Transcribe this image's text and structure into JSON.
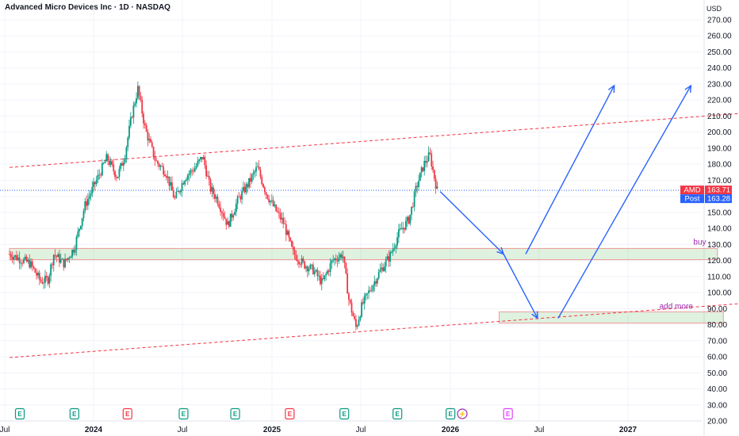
{
  "header": {
    "title": "Advanced Micro Devices Inc · 1D · NASDAQ",
    "currency": "USD"
  },
  "chart_data": {
    "type": "candlestick",
    "symbol": "AMD",
    "ylim": [
      20,
      270
    ],
    "y_ticks": [
      20,
      30,
      40,
      50,
      60,
      70,
      80,
      90,
      100,
      110,
      120,
      130,
      140,
      150,
      160,
      170,
      180,
      190,
      200,
      210,
      220,
      230,
      240,
      250,
      260,
      270
    ],
    "x_ticks": [
      "Jul",
      "2024",
      "Jul",
      "2025",
      "Jul",
      "2026",
      "Jul",
      "2027"
    ],
    "price_tags": [
      {
        "label": "AMD",
        "value": 163.71,
        "color": "#f23645"
      },
      {
        "label": "Post",
        "value": 163.28,
        "color": "#2962ff"
      }
    ],
    "last_price": 163.71,
    "price_path": [
      [
        0,
        124
      ],
      [
        0.35,
        121
      ],
      [
        0.7,
        118
      ],
      [
        1.05,
        107
      ],
      [
        1.3,
        108
      ],
      [
        1.5,
        124
      ],
      [
        1.85,
        118
      ],
      [
        2.2,
        128
      ],
      [
        2.55,
        154
      ],
      [
        2.9,
        168
      ],
      [
        3.3,
        184
      ],
      [
        3.65,
        172
      ],
      [
        3.9,
        185
      ],
      [
        4.15,
        211
      ],
      [
        4.35,
        227
      ],
      [
        4.6,
        202
      ],
      [
        4.95,
        182
      ],
      [
        5.3,
        175
      ],
      [
        5.6,
        158
      ],
      [
        5.95,
        172
      ],
      [
        6.3,
        178
      ],
      [
        6.55,
        185
      ],
      [
        6.8,
        165
      ],
      [
        7.05,
        158
      ],
      [
        7.4,
        142
      ],
      [
        7.75,
        158
      ],
      [
        8.1,
        168
      ],
      [
        8.4,
        178
      ],
      [
        8.7,
        162
      ],
      [
        9.0,
        152
      ],
      [
        9.3,
        143
      ],
      [
        9.6,
        125
      ],
      [
        9.95,
        118
      ],
      [
        10.3,
        114
      ],
      [
        10.6,
        106
      ],
      [
        10.95,
        120
      ],
      [
        11.3,
        124
      ],
      [
        11.5,
        96
      ],
      [
        11.75,
        78
      ],
      [
        11.95,
        92
      ],
      [
        12.2,
        101
      ],
      [
        12.55,
        113
      ],
      [
        12.9,
        123
      ],
      [
        13.2,
        137
      ],
      [
        13.55,
        146
      ],
      [
        13.8,
        166
      ],
      [
        14.05,
        180
      ],
      [
        14.25,
        186
      ],
      [
        14.4,
        172
      ],
      [
        14.5,
        163.7
      ]
    ],
    "events": [
      {
        "label": "E",
        "x": 0.35,
        "kind": "earnings",
        "color": "#089981"
      },
      {
        "label": "E",
        "x": 2.2,
        "kind": "earnings",
        "color": "#089981"
      },
      {
        "label": "E",
        "x": 4.0,
        "kind": "earnings",
        "color": "#f23645"
      },
      {
        "label": "E",
        "x": 5.9,
        "kind": "earnings",
        "color": "#089981"
      },
      {
        "label": "E",
        "x": 7.65,
        "kind": "earnings",
        "color": "#089981"
      },
      {
        "label": "E",
        "x": 9.5,
        "kind": "earnings",
        "color": "#f23645"
      },
      {
        "label": "E",
        "x": 11.35,
        "kind": "earnings",
        "color": "#089981"
      },
      {
        "label": "E",
        "x": 13.15,
        "kind": "earnings",
        "color": "#089981"
      },
      {
        "label": "E",
        "x": 14.95,
        "kind": "earnings",
        "color": "#089981"
      },
      {
        "label": "⚡",
        "x": 15.35,
        "kind": "dividend",
        "color": "#9c27b0"
      },
      {
        "label": "E",
        "x": 16.9,
        "kind": "upcoming",
        "color": "#e040fb"
      }
    ],
    "zones": [
      {
        "name": "buy",
        "x0": 0,
        "x1": 24.0,
        "y0": 120.5,
        "y1": 127.5
      },
      {
        "name": "add more",
        "x0": 16.6,
        "x1": 24.2,
        "y0": 81,
        "y1": 88
      }
    ],
    "trend_lines": [
      {
        "x0": 0,
        "y0": 178,
        "x1": 28,
        "y1": 216
      },
      {
        "x0": 0,
        "y0": 59.5,
        "x1": 28,
        "y1": 97.5
      }
    ],
    "arrows": [
      [
        [
          14.6,
          163
        ],
        [
          16.75,
          124
        ]
      ],
      [
        [
          17.5,
          124
        ],
        [
          20.5,
          229
        ]
      ],
      [
        [
          16.75,
          124
        ],
        [
          17.9,
          84
        ]
      ],
      [
        [
          18.6,
          84
        ],
        [
          23.1,
          229
        ]
      ]
    ],
    "annotations": [
      {
        "text": "buy",
        "x": 23.4,
        "y": 130
      },
      {
        "text": "add more",
        "x": 22.6,
        "y": 90
      }
    ]
  }
}
